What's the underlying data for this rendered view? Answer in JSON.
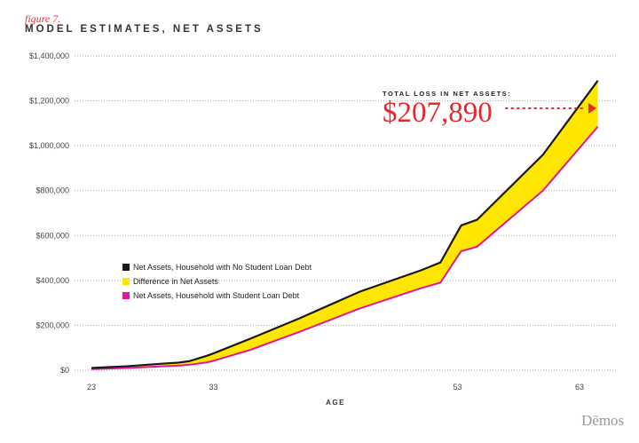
{
  "header": {
    "figure": "figure 7.",
    "title": "MODEL ESTIMATES, NET ASSETS"
  },
  "annotation": {
    "label": "TOTAL LOSS IN NET ASSETS:",
    "value": "$207,890"
  },
  "logo": "Dēmos",
  "colors": {
    "no_debt": "#1a1a1a",
    "difference": "#ffe600",
    "with_debt": "#e0189a",
    "accent": "#e8262c"
  },
  "chart_data": {
    "type": "area",
    "title": "MODEL ESTIMATES, NET ASSETS",
    "xlabel": "AGE",
    "ylabel": "",
    "xlim": [
      23,
      63
    ],
    "ylim": [
      0,
      1400000
    ],
    "x_ticks": [
      23,
      33,
      53,
      63
    ],
    "y_ticks": [
      0,
      200000,
      400000,
      600000,
      800000,
      1000000,
      1200000,
      1400000
    ],
    "y_tick_labels": [
      "$0",
      "$200,000",
      "$400,000",
      "$600,000",
      "$800,000",
      "$1,000,000",
      "$1,200,000",
      "$1,400,000"
    ],
    "grid": true,
    "legend_placement": "center-left",
    "x": [
      23,
      26,
      29,
      30,
      31,
      32.5,
      33,
      36,
      40,
      45,
      50,
      51.6,
      53.3,
      54.6,
      60,
      64.5
    ],
    "series": [
      {
        "name": "Net Assets, Household with No Student Loan Debt",
        "values": [
          10000,
          18000,
          30000,
          33000,
          40000,
          65000,
          75000,
          140000,
          230000,
          350000,
          445000,
          480000,
          645000,
          670000,
          960000,
          1290000
        ]
      },
      {
        "name": "Net Assets, Household with Student Loan Debt",
        "values": [
          5000,
          10000,
          18000,
          20000,
          24000,
          35000,
          42000,
          90000,
          170000,
          275000,
          365000,
          390000,
          530000,
          550000,
          800000,
          1085000
        ]
      }
    ],
    "legend": [
      "Net Assets, Household with No Student Loan Debt",
      "Difference in Net Assets",
      "Net Assets, Household with Student Loan Debt"
    ]
  }
}
